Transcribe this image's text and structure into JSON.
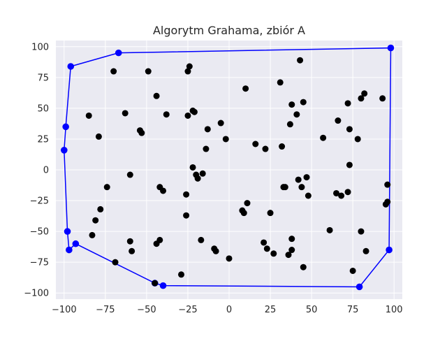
{
  "chart_data": {
    "type": "scatter",
    "title": "Algorytm Grahama, zbiór A",
    "xlabel": "",
    "ylabel": "",
    "xlim": [
      -105,
      105
    ],
    "ylim": [
      -105,
      105
    ],
    "xticks": [
      -100,
      -75,
      -50,
      -25,
      0,
      25,
      50,
      75,
      100
    ],
    "yticks": [
      -100,
      -75,
      -50,
      -25,
      0,
      25,
      50,
      75,
      100
    ],
    "xtick_labels": [
      "−100",
      "−75",
      "−50",
      "−25",
      "0",
      "25",
      "50",
      "75",
      "100"
    ],
    "ytick_labels": [
      "−100",
      "−75",
      "−50",
      "−25",
      "0",
      "25",
      "50",
      "75",
      "100"
    ],
    "grid": true,
    "background": "#eaeaf2",
    "point_color": "#000000",
    "hull_color": "#0000ff",
    "points": [
      [
        -70,
        80
      ],
      [
        -49,
        80
      ],
      [
        -25,
        80
      ],
      [
        -24,
        84
      ],
      [
        -44,
        60
      ],
      [
        -38,
        45
      ],
      [
        -63,
        46
      ],
      [
        -85,
        44
      ],
      [
        -79,
        27
      ],
      [
        -54,
        32
      ],
      [
        -53,
        30
      ],
      [
        -21,
        47
      ],
      [
        -22,
        48
      ],
      [
        -25,
        44
      ],
      [
        -13,
        33
      ],
      [
        -5,
        38
      ],
      [
        -14,
        17
      ],
      [
        -2,
        25
      ],
      [
        10,
        66
      ],
      [
        16,
        21
      ],
      [
        22,
        17
      ],
      [
        31,
        71
      ],
      [
        32,
        19
      ],
      [
        38,
        53
      ],
      [
        37,
        37
      ],
      [
        41,
        45
      ],
      [
        45,
        55
      ],
      [
        43,
        89
      ],
      [
        57,
        26
      ],
      [
        66,
        40
      ],
      [
        72,
        54
      ],
      [
        73,
        33
      ],
      [
        78,
        25
      ],
      [
        80,
        58
      ],
      [
        82,
        62
      ],
      [
        93,
        58
      ],
      [
        73,
        4
      ],
      [
        96,
        -12
      ],
      [
        96,
        -26
      ],
      [
        95,
        -28
      ],
      [
        -60,
        -4
      ],
      [
        -74,
        -14
      ],
      [
        -42,
        -14
      ],
      [
        -40,
        -17
      ],
      [
        -22,
        2
      ],
      [
        -20,
        -4
      ],
      [
        -16,
        -3
      ],
      [
        -19,
        -7
      ],
      [
        -26,
        -20
      ],
      [
        33,
        -14
      ],
      [
        34,
        -14
      ],
      [
        42,
        -8
      ],
      [
        44,
        -14
      ],
      [
        47,
        -6
      ],
      [
        48,
        -21
      ],
      [
        65,
        -19
      ],
      [
        68,
        -21
      ],
      [
        72,
        -18
      ],
      [
        -78,
        -32
      ],
      [
        -81,
        -41
      ],
      [
        -83,
        -53
      ],
      [
        -60,
        -58
      ],
      [
        -59,
        -66
      ],
      [
        -44,
        -60
      ],
      [
        -42,
        -57
      ],
      [
        -26,
        -37
      ],
      [
        -17,
        -57
      ],
      [
        -9,
        -64
      ],
      [
        -8,
        -66
      ],
      [
        8,
        -33
      ],
      [
        9,
        -35
      ],
      [
        11,
        -27
      ],
      [
        25,
        -35
      ],
      [
        21,
        -59
      ],
      [
        23,
        -64
      ],
      [
        27,
        -68
      ],
      [
        38,
        -56
      ],
      [
        38,
        -65
      ],
      [
        36,
        -69
      ],
      [
        45,
        -79
      ],
      [
        61,
        -49
      ],
      [
        80,
        -50
      ],
      [
        83,
        -66
      ],
      [
        75,
        -82
      ],
      [
        -69,
        -75
      ],
      [
        0,
        -72
      ],
      [
        -29,
        -85
      ],
      [
        -45,
        -92
      ]
    ],
    "hull": [
      [
        -67,
        95
      ],
      [
        98,
        99
      ],
      [
        97,
        -65
      ],
      [
        79,
        -95
      ],
      [
        -40,
        -94
      ],
      [
        -45,
        -92
      ],
      [
        -93,
        -60
      ],
      [
        -97,
        -65
      ],
      [
        -98,
        -50
      ],
      [
        -100,
        16
      ],
      [
        -99,
        35
      ],
      [
        -96,
        84
      ]
    ]
  }
}
